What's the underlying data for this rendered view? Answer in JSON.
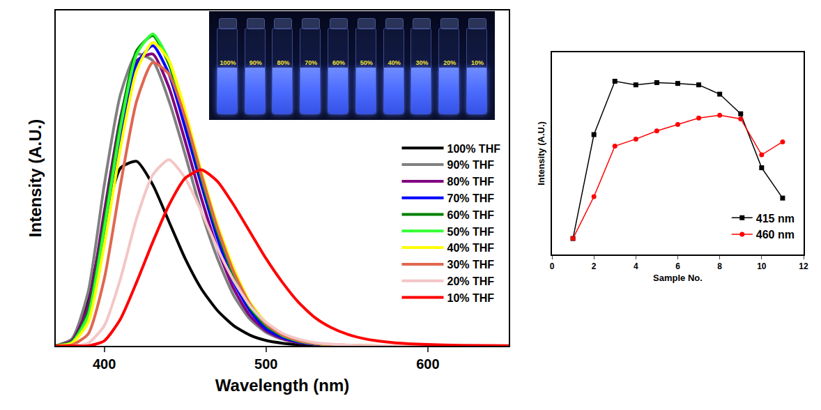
{
  "chart_data": [
    {
      "type": "line",
      "x_label": "Wavelength (nm)",
      "y_label": "Intensity (A.U.)",
      "x": [
        370,
        380,
        390,
        400,
        410,
        420,
        430,
        440,
        450,
        460,
        470,
        480,
        490,
        500,
        510,
        520,
        530,
        540,
        550,
        560,
        570,
        580,
        600,
        620,
        650
      ],
      "series": [
        {
          "name": "100% THF",
          "color": "#000000",
          "values": [
            0,
            2,
            14,
            36,
            53,
            55,
            48,
            37,
            26,
            17,
            10.5,
            6,
            3.2,
            1.6,
            0.8,
            0.4,
            0.2,
            0.1,
            0,
            0,
            0,
            0,
            0,
            0,
            0
          ]
        },
        {
          "name": "90% THF",
          "color": "#808080",
          "values": [
            0,
            2,
            16,
            48,
            75,
            87,
            85,
            73,
            57,
            40,
            26,
            15,
            8,
            4,
            2,
            1,
            0.5,
            0.2,
            0.1,
            0,
            0,
            0,
            0,
            0,
            0
          ]
        },
        {
          "name": "80% THF",
          "color": "#800080",
          "values": [
            0,
            1.5,
            12,
            40,
            68,
            85,
            87,
            77,
            61,
            44,
            29,
            17,
            9,
            4.5,
            2.2,
            1,
            0.5,
            0.2,
            0.1,
            0,
            0,
            0,
            0,
            0,
            0
          ]
        },
        {
          "name": "70% THF",
          "color": "#0000ff",
          "values": [
            0,
            1,
            9,
            34,
            63,
            84,
            89.5,
            81,
            65,
            48,
            32,
            19,
            10.5,
            5,
            2.5,
            1.2,
            0.6,
            0.3,
            0.1,
            0,
            0,
            0,
            0,
            0,
            0
          ]
        },
        {
          "name": "60% THF",
          "color": "#008000",
          "values": [
            0,
            1.2,
            10,
            37,
            67,
            88,
            92.5,
            84,
            68,
            50,
            34,
            21,
            11.5,
            6,
            3,
            1.4,
            0.7,
            0.3,
            0.1,
            0,
            0,
            0,
            0,
            0,
            0
          ]
        },
        {
          "name": "50% THF",
          "color": "#33ff33",
          "values": [
            0,
            1,
            9,
            35,
            65,
            87,
            93,
            85,
            69,
            51,
            35,
            22,
            12,
            6.5,
            3.2,
            1.5,
            0.7,
            0.3,
            0.1,
            0,
            0,
            0,
            0,
            0,
            0
          ]
        },
        {
          "name": "40% THF",
          "color": "#ffff00",
          "values": [
            0,
            0.8,
            7,
            30,
            59,
            82,
            90.5,
            85,
            70,
            52,
            36,
            23,
            13,
            7,
            3.5,
            1.7,
            0.8,
            0.4,
            0.2,
            0.1,
            0,
            0,
            0,
            0,
            0
          ]
        },
        {
          "name": "30% THF",
          "color": "#e0674f",
          "values": [
            0,
            0.3,
            3.5,
            20,
            48,
            73,
            84.5,
            81,
            68,
            51,
            35,
            22,
            12.5,
            6.5,
            3.3,
            1.6,
            0.8,
            0.4,
            0.2,
            0.1,
            0,
            0,
            0,
            0,
            0
          ]
        },
        {
          "name": "20% THF",
          "color": "#f4c6c6",
          "values": [
            0,
            0,
            0.8,
            6,
            20,
            38,
            51,
            55.5,
            50,
            40,
            29,
            19.5,
            12,
            7,
            3.8,
            2,
            1,
            0.5,
            0.25,
            0.1,
            0,
            0,
            0,
            0,
            0
          ]
        },
        {
          "name": "10% THF",
          "color": "#ff0000",
          "values": [
            0,
            0,
            0,
            1.5,
            8,
            19,
            31,
            42,
            50,
            52.5,
            49,
            42,
            34,
            26,
            19,
            13,
            8.5,
            5.5,
            3.5,
            2.2,
            1.4,
            0.9,
            0.4,
            0.15,
            0.05
          ]
        }
      ],
      "xlim": [
        370,
        650
      ],
      "xticks": [
        400,
        500,
        600
      ],
      "ylim": [
        0,
        100
      ],
      "yticks": [],
      "tick_labels": "x",
      "grid": false,
      "legend": "right",
      "line_style": "solid",
      "inset_labels": [
        "100%",
        "90%",
        "80%",
        "70%",
        "60%",
        "50%",
        "40%",
        "30%",
        "20%",
        "10%"
      ]
    },
    {
      "type": "line",
      "x_label": "Sample No.",
      "y_label": "Intensity (A.U.)",
      "x": [
        1,
        2,
        3,
        4,
        5,
        6,
        7,
        8,
        9,
        10,
        11
      ],
      "series": [
        {
          "name": "415 nm",
          "color": "#000000",
          "marker": "square",
          "values": [
            7.9,
            59.3,
            85.7,
            83.9,
            85,
            84.6,
            83.9,
            79.3,
            69.6,
            42.9,
            27.9
          ]
        },
        {
          "name": "460 nm",
          "color": "#ff0000",
          "marker": "circle",
          "values": [
            7.9,
            28.6,
            53.6,
            57.1,
            61.1,
            64.3,
            67.5,
            68.9,
            67.1,
            49.3,
            55.7
          ]
        }
      ],
      "xlim": [
        0,
        12
      ],
      "xticks": [
        0,
        2,
        4,
        6,
        8,
        10,
        12
      ],
      "ylim": [
        0,
        100
      ],
      "yticks": [],
      "tick_labels": "x",
      "grid": false,
      "legend": "lower right"
    }
  ]
}
